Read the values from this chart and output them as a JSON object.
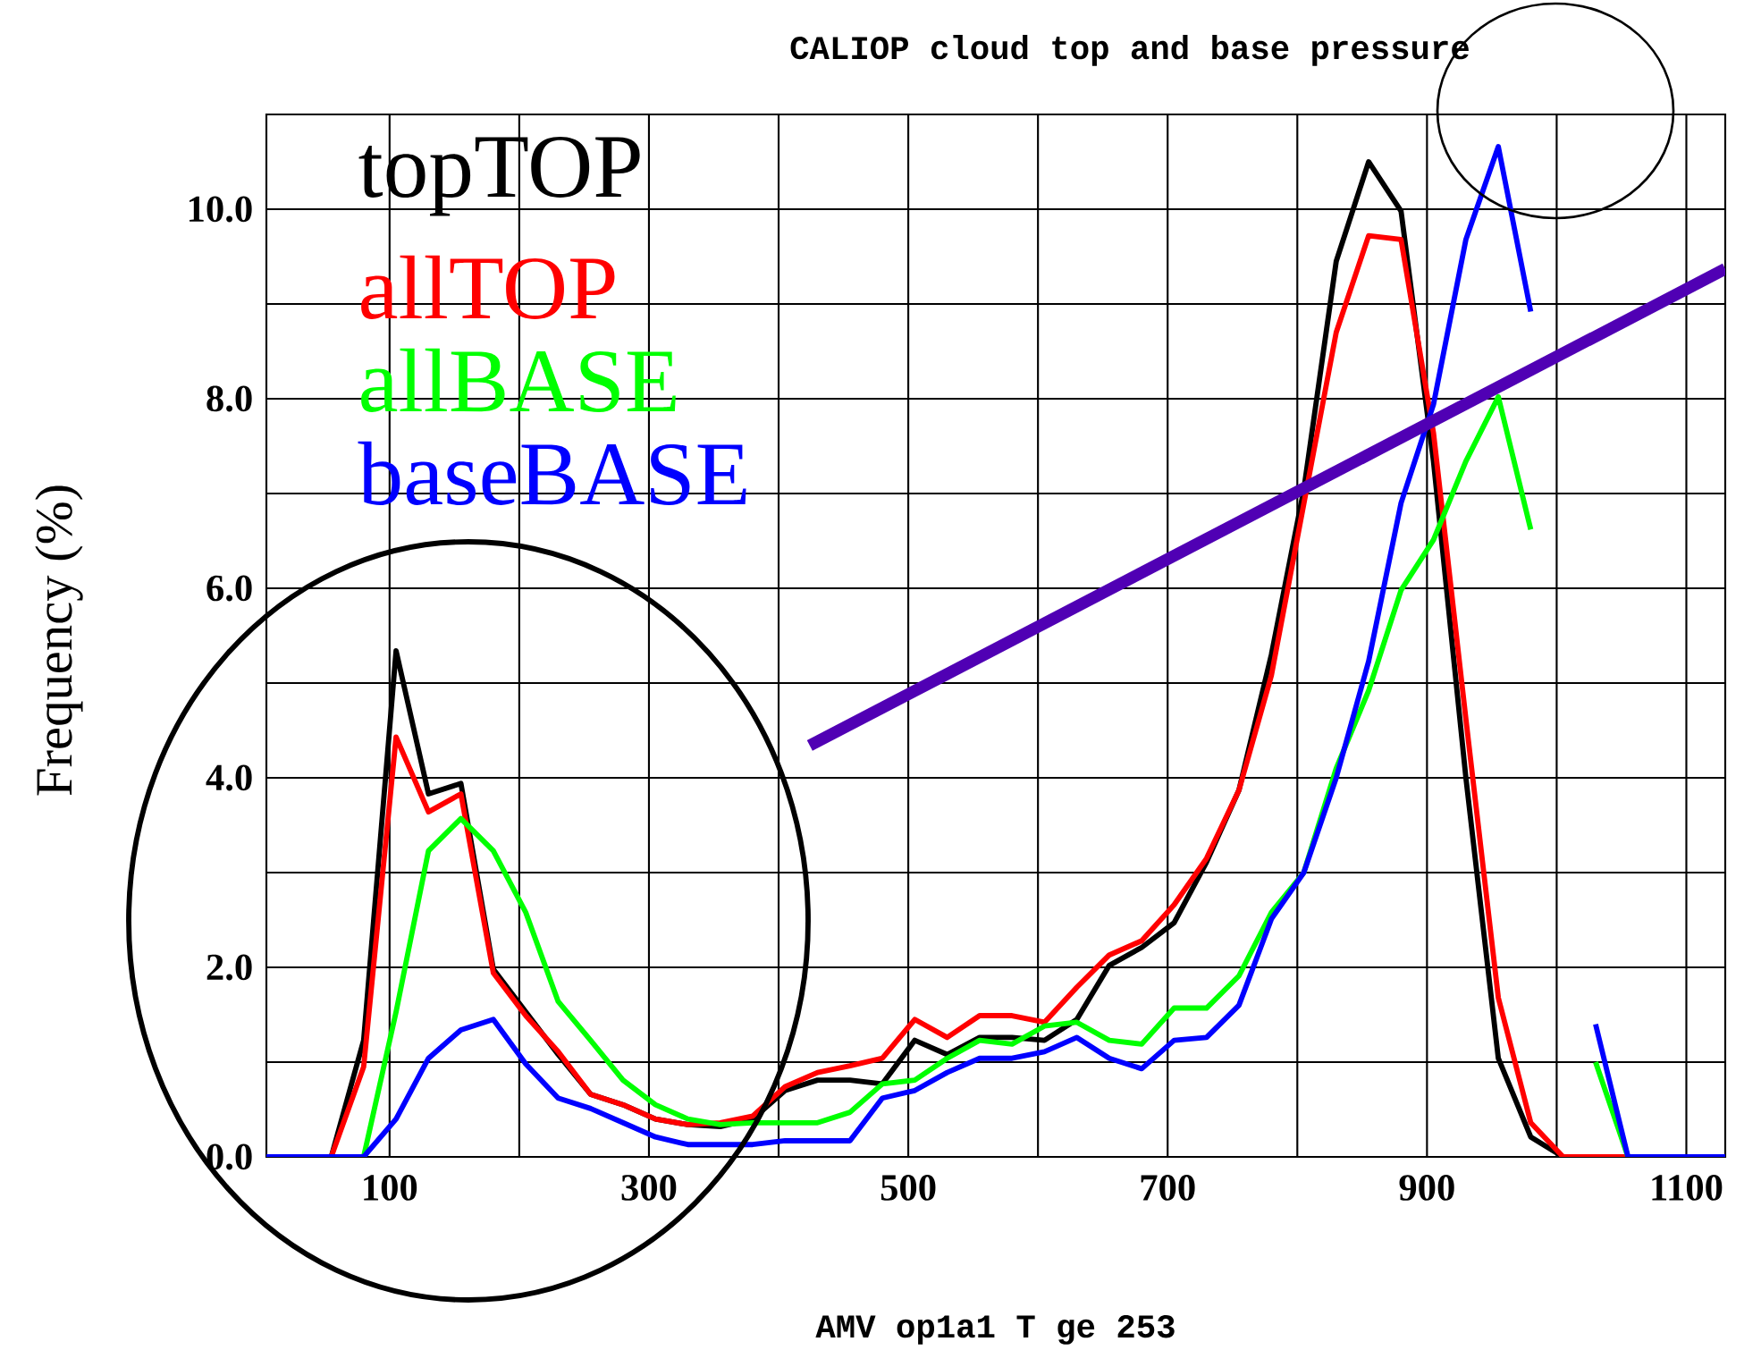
{
  "chart_data": {
    "type": "line",
    "title": "CALIOP cloud top and base pressure",
    "xlabel": "AMV op1a1 T ge 253",
    "ylabel": "Frequency (%)",
    "x": [
      5,
      30,
      55,
      80,
      105,
      130,
      155,
      180,
      205,
      230,
      255,
      280,
      305,
      330,
      355,
      380,
      405,
      430,
      455,
      480,
      505,
      530,
      555,
      580,
      605,
      630,
      655,
      680,
      705,
      730,
      755,
      780,
      805,
      830,
      855,
      880,
      905,
      930,
      955,
      980,
      1005,
      1030,
      1055,
      1080,
      1105,
      1130
    ],
    "xlim": [
      5,
      1130
    ],
    "ylim": [
      0,
      11
    ],
    "xticks": [
      100,
      {
        "value": 200,
        "label": null
      },
      300,
      {
        "value": 400,
        "label": null
      },
      500,
      {
        "value": 600,
        "label": null
      },
      700,
      {
        "value": 800,
        "label": null
      },
      900,
      {
        "value": 1000,
        "label": null
      },
      1100
    ],
    "yticks": [
      {
        "value": 0,
        "label": "0.0"
      },
      {
        "value": 1,
        "label": null
      },
      {
        "value": 2,
        "label": "2.0"
      },
      {
        "value": 3,
        "label": null
      },
      {
        "value": 4,
        "label": "4.0"
      },
      {
        "value": 5,
        "label": null
      },
      {
        "value": 6,
        "label": "6.0"
      },
      {
        "value": 7,
        "label": null
      },
      {
        "value": 8,
        "label": "8.0"
      },
      {
        "value": 9,
        "label": null
      },
      {
        "value": 10,
        "label": "10.0"
      }
    ],
    "grid": true,
    "legend": "top left",
    "marker": "none",
    "line_style": "solid",
    "series": [
      {
        "name": "topTOP",
        "color": "#000000",
        "values": [
          0,
          0,
          0,
          1.23,
          5.34,
          3.83,
          3.94,
          1.98,
          1.53,
          1.08,
          0.66,
          0.55,
          0.4,
          0.34,
          0.32,
          0.4,
          0.7,
          0.81,
          0.81,
          0.77,
          1.23,
          1.08,
          1.26,
          1.26,
          1.23,
          1.45,
          2.02,
          2.21,
          2.47,
          3.11,
          3.87,
          5.3,
          7.04,
          9.45,
          10.5,
          9.98,
          7.34,
          4.0,
          1.04,
          0.21,
          0,
          0,
          0,
          0,
          0,
          0
        ]
      },
      {
        "name": "allTOP",
        "color": "#ff0000",
        "values": [
          0,
          0,
          0,
          0.95,
          4.43,
          3.64,
          3.83,
          1.94,
          1.49,
          1.11,
          0.66,
          0.55,
          0.4,
          0.34,
          0.36,
          0.43,
          0.74,
          0.89,
          0.96,
          1.04,
          1.45,
          1.26,
          1.49,
          1.49,
          1.42,
          1.79,
          2.13,
          2.28,
          2.66,
          3.15,
          3.87,
          5.08,
          6.89,
          8.7,
          9.72,
          9.68,
          7.64,
          4.62,
          1.68,
          0.36,
          0,
          0,
          0,
          0,
          null,
          null
        ]
      },
      {
        "name": "allBASE",
        "color": "#00ff00",
        "values": [
          null,
          null,
          0,
          0,
          1.53,
          3.23,
          3.57,
          3.23,
          2.58,
          1.64,
          1.23,
          0.81,
          0.55,
          0.4,
          0.34,
          0.36,
          0.36,
          0.36,
          0.47,
          0.77,
          0.81,
          1.04,
          1.23,
          1.19,
          1.38,
          1.42,
          1.23,
          1.19,
          1.57,
          1.57,
          1.91,
          2.58,
          3.0,
          4.1,
          4.92,
          5.98,
          6.51,
          7.34,
          8.02,
          6.62,
          null,
          1.0,
          0,
          0,
          null,
          null
        ]
      },
      {
        "name": "baseBASE",
        "color": "#0000ff",
        "values": [
          0,
          0,
          0,
          0,
          0.4,
          1.04,
          1.34,
          1.45,
          0.98,
          0.62,
          0.51,
          0.36,
          0.21,
          0.13,
          0.13,
          0.13,
          0.17,
          0.17,
          0.17,
          0.62,
          0.7,
          0.89,
          1.04,
          1.04,
          1.11,
          1.26,
          1.04,
          0.93,
          1.23,
          1.26,
          1.6,
          2.51,
          3.0,
          4.0,
          5.23,
          6.9,
          7.94,
          9.68,
          10.66,
          8.92,
          null,
          1.4,
          0,
          0,
          0,
          0
        ]
      },
      {
        "color": "#5000b4",
        "x": [
          424,
          1130
        ],
        "values": [
          4.34,
          9.37
        ]
      }
    ]
  }
}
